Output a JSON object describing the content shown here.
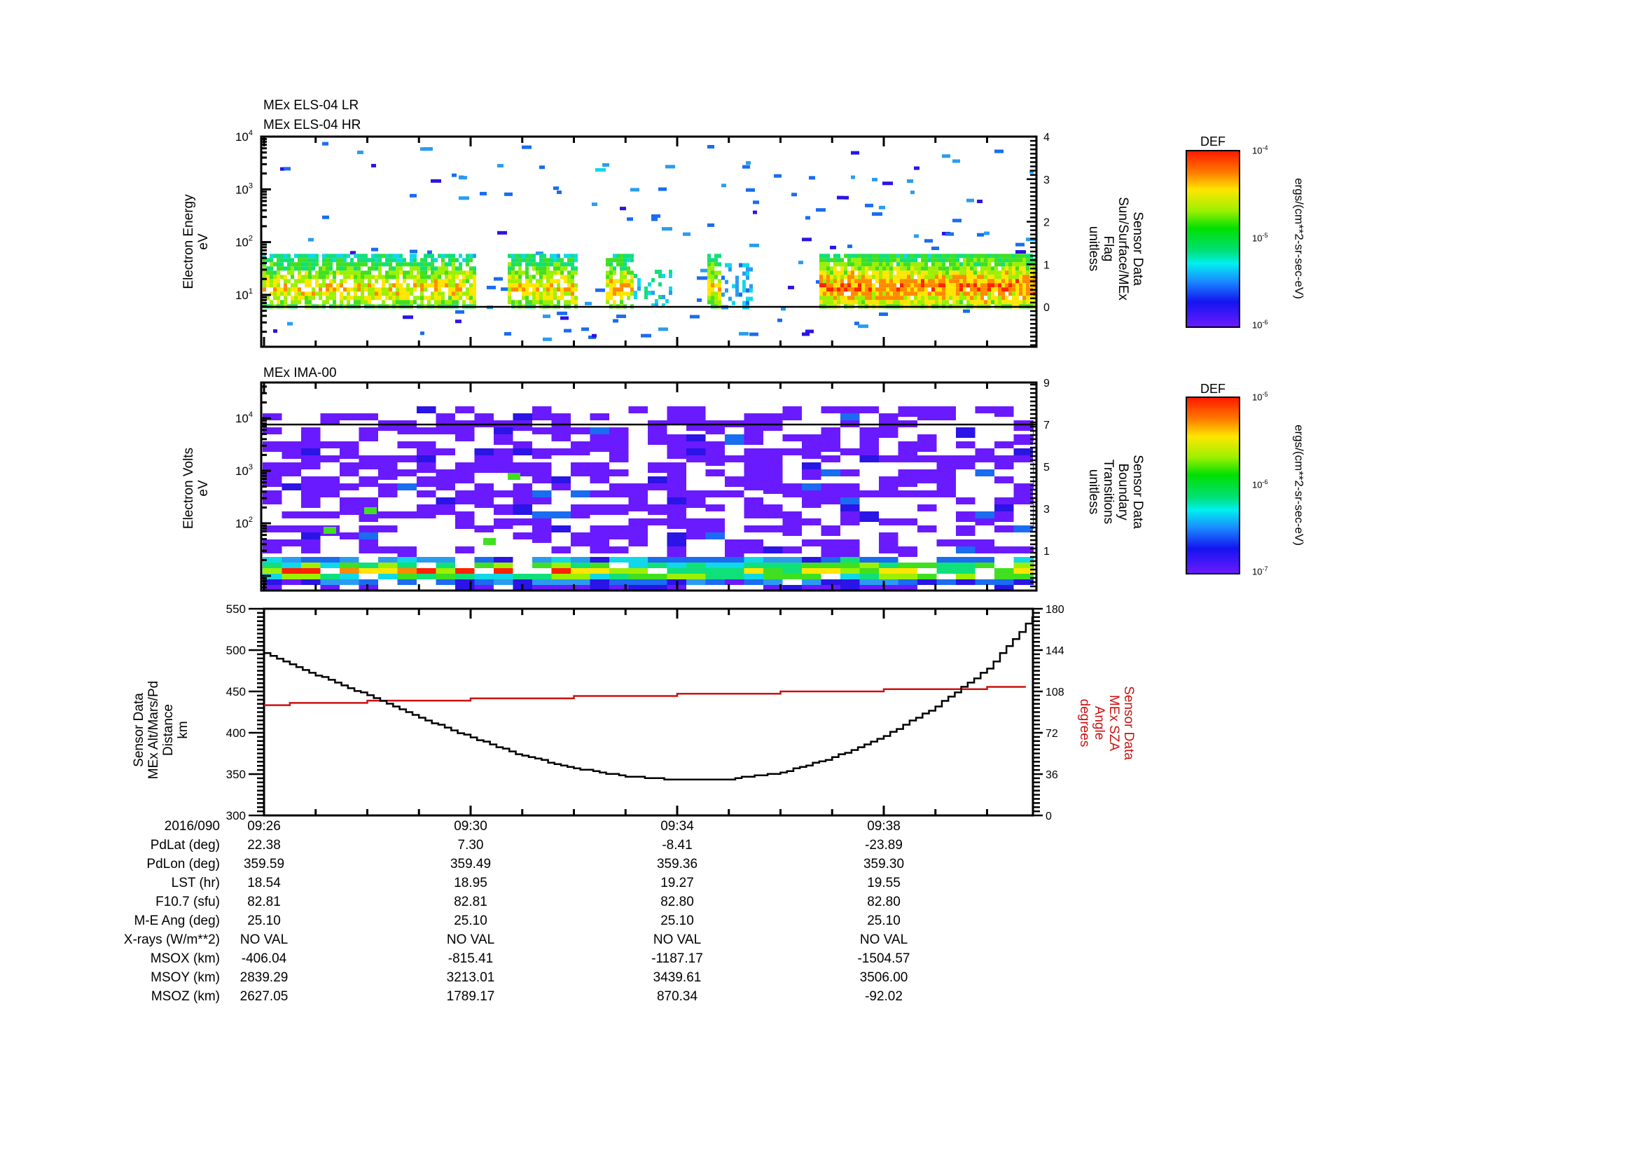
{
  "panels": [
    {
      "id": "els",
      "titles": [
        "MEx ELS-04 LR",
        "MEx ELS-04 HR"
      ],
      "left_label": [
        "Electron Energy",
        "eV"
      ],
      "right_label": [
        "Sensor Data",
        "Sun/Surface/MEx",
        "Flag",
        "unitless"
      ],
      "left_ticks": [
        {
          "base": "10",
          "exp": "4"
        },
        {
          "base": "10",
          "exp": "3"
        },
        {
          "base": "10",
          "exp": "2"
        },
        {
          "base": "10",
          "exp": "1"
        }
      ],
      "right_ticks": [
        "4",
        "3",
        "2",
        "1",
        "0"
      ],
      "colorbar": {
        "title": "DEF",
        "max": "10",
        "max_exp": "-4",
        "mid": "10",
        "mid_exp": "-5",
        "min": "10",
        "min_exp": "-6",
        "units": "ergs/(cm**2-sr-sec-eV)"
      }
    },
    {
      "id": "ima",
      "titles": [
        "MEx IMA-00"
      ],
      "left_label": [
        "Electron Volts",
        "eV"
      ],
      "right_label": [
        "Sensor Data",
        "Boundary",
        "Transitions",
        "unitless"
      ],
      "left_ticks": [
        {
          "base": "10",
          "exp": "4"
        },
        {
          "base": "10",
          "exp": "3"
        },
        {
          "base": "10",
          "exp": "2"
        }
      ],
      "right_ticks": [
        "9",
        "7",
        "5",
        "3",
        "1"
      ],
      "colorbar": {
        "title": "DEF",
        "max": "10",
        "max_exp": "-5",
        "mid": "10",
        "mid_exp": "-6",
        "min": "10",
        "min_exp": "-7",
        "units": "ergs/(cm**2-sr-sec-eV)"
      }
    },
    {
      "id": "orbit",
      "left_label": [
        "Sensor Data",
        "MEx Alt/Mars/Pd",
        "Distance",
        "km"
      ],
      "right_label": [
        "Sensor Data",
        "MEx SZA",
        "Angle",
        "degrees"
      ],
      "left_ticks": [
        "550",
        "500",
        "450",
        "400",
        "350",
        "300"
      ],
      "right_ticks": [
        "180",
        "144",
        "108",
        "72",
        "36",
        "0"
      ]
    }
  ],
  "table": {
    "header_label": "2016/090",
    "times": [
      "09:26",
      "09:30",
      "09:34",
      "09:38"
    ],
    "rows": [
      {
        "label": "PdLat (deg)",
        "values": [
          "22.38",
          "7.30",
          "-8.41",
          "-23.89"
        ]
      },
      {
        "label": "PdLon (deg)",
        "values": [
          "359.59",
          "359.49",
          "359.36",
          "359.30"
        ]
      },
      {
        "label": "LST (hr)",
        "values": [
          "18.54",
          "18.95",
          "19.27",
          "19.55"
        ]
      },
      {
        "label": "F10.7 (sfu)",
        "values": [
          "82.81",
          "82.81",
          "82.80",
          "82.80"
        ]
      },
      {
        "label": "M-E Ang (deg)",
        "values": [
          "25.10",
          "25.10",
          "25.10",
          "25.10"
        ]
      },
      {
        "label": "X-rays (W/m**2)",
        "values": [
          "NO VAL",
          "NO VAL",
          "NO VAL",
          "NO VAL"
        ]
      },
      {
        "label": "MSOX (km)",
        "values": [
          "-406.04",
          "-815.41",
          "-1187.17",
          "-1504.57"
        ]
      },
      {
        "label": "MSOY (km)",
        "values": [
          "2839.29",
          "3213.01",
          "3439.61",
          "3506.00"
        ]
      },
      {
        "label": "MSOZ (km)",
        "values": [
          "2627.05",
          "1789.17",
          "870.34",
          "-92.02"
        ]
      }
    ]
  },
  "colors": {
    "sza_line": "#cc1111",
    "altitude_line": "#000000",
    "flag_line": "#000000"
  },
  "chart_data": [
    {
      "type": "heatmap",
      "title": "MEx ELS-04 LR / MEx ELS-04 HR",
      "xlabel": "2016/090 UT",
      "x_ticks": [
        "09:26",
        "09:30",
        "09:34",
        "09:38"
      ],
      "x_range": [
        "09:26",
        "09:40:53"
      ],
      "ylabel": "Electron Energy (eV)",
      "yscale": "log",
      "ylim": [
        1,
        10000
      ],
      "y2label": "Sensor Data Sun/Surface/MEx Flag (unitless)",
      "y2lim": [
        -0.6,
        4
      ],
      "y2_ticks": [
        0,
        1,
        2,
        3,
        4
      ],
      "flag_value": 0,
      "colorbar": {
        "label": "DEF ergs/(cm**2-sr-sec-eV)",
        "scale": "log",
        "range": [
          1e-06,
          0.0001
        ]
      },
      "description": "Electron flux band concentrated ~5-60 eV (green/yellow peaks ~1e-5 DEF), data gaps ~09:30:05-09:30:45, ~09:33:00-09:33:30 and ~09:34:15-09:36:45; dense emission resumes 09:36:45 to end; sparse blue pixels up to 10 keV."
    },
    {
      "type": "heatmap",
      "title": "MEx IMA-00",
      "xlabel": "2016/090 UT",
      "x_ticks": [
        "09:26",
        "09:30",
        "09:34",
        "09:38"
      ],
      "ylabel": "Electron Volts (eV)",
      "yscale": "log",
      "ylim": [
        3,
        30000
      ],
      "y2label": "Sensor Data Boundary Transitions (unitless)",
      "y2lim": [
        -1,
        9
      ],
      "y2_ticks": [
        1,
        3,
        5,
        7,
        9
      ],
      "flag_value": 7,
      "colorbar": {
        "label": "DEF ergs/(cm**2-sr-sec-eV)",
        "scale": "log",
        "range": [
          1e-07,
          1e-05
        ]
      },
      "description": "Low-level purple/blue background 20 eV - 20 keV; intense band (green-red, up to ~1e-5) at ~8-20 eV across the pass, strongest 09:26-09:32."
    },
    {
      "type": "line",
      "xlabel": "2016/090 UT",
      "x_ticks": [
        "09:26",
        "09:30",
        "09:34",
        "09:38"
      ],
      "x_minutes": [
        0,
        1,
        2,
        3,
        4,
        5,
        6,
        7,
        8,
        9,
        10,
        11,
        12,
        13,
        14,
        14.9
      ],
      "ylabel": "Sensor Data MEx Alt/Mars/Pd Distance (km)",
      "ylim": [
        300,
        550
      ],
      "y2label": "Sensor Data MEx SZA Angle (degrees)",
      "y2lim": [
        0,
        180
      ],
      "series": [
        {
          "name": "MEx Alt/Mars/Pd Distance (km)",
          "axis": "left",
          "color": "#000000",
          "values": [
            496,
            470,
            445,
            418,
            394,
            372,
            357,
            347,
            343,
            344,
            352,
            370,
            396,
            432,
            478,
            542
          ]
        },
        {
          "name": "MEx SZA Angle (degrees)",
          "axis": "right",
          "color": "#cc1111",
          "values": [
            96,
            98,
            99,
            100,
            101,
            102,
            103,
            104,
            105,
            106,
            107,
            108,
            109,
            110,
            111,
            112
          ]
        }
      ]
    }
  ]
}
